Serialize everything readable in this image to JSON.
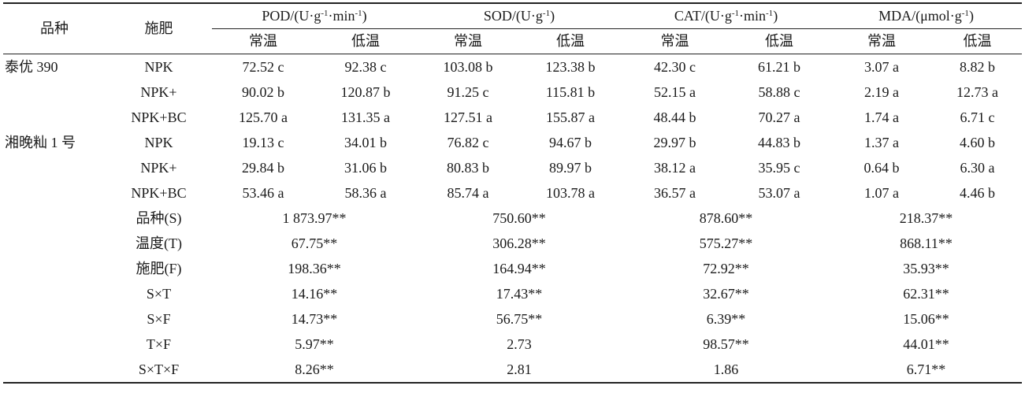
{
  "header": {
    "variety": "品种",
    "fertilizer": "施肥",
    "groups": [
      {
        "base": "POD/(U·g",
        "sup1": "-1",
        "mid": "·min",
        "sup2": "-1",
        "end": ")"
      },
      {
        "base": "SOD/(U·g",
        "sup1": "-1",
        "mid": "",
        "sup2": "",
        "end": ")"
      },
      {
        "base": "CAT/(U·g",
        "sup1": "-1",
        "mid": "·min",
        "sup2": "-1",
        "end": ")"
      },
      {
        "base": "MDA/(μmol·g",
        "sup1": "-1",
        "mid": "",
        "sup2": "",
        "end": ")"
      }
    ],
    "sub_normal": "常温",
    "sub_low": "低温"
  },
  "rows": [
    {
      "variety": "泰优 390",
      "fert": "NPK",
      "v": [
        "72.52 c",
        "92.38 c",
        "103.08 b",
        "123.38 b",
        "42.30 c",
        "61.21 b",
        "3.07 a",
        "8.82 b"
      ]
    },
    {
      "variety": "",
      "fert": "NPK+",
      "v": [
        "90.02 b",
        "120.87 b",
        "91.25 c",
        "115.81 b",
        "52.15 a",
        "58.88 c",
        "2.19 a",
        "12.73 a"
      ]
    },
    {
      "variety": "",
      "fert": "NPK+BC",
      "v": [
        "125.70 a",
        "131.35 a",
        "127.51 a",
        "155.87 a",
        "48.44 b",
        "70.27 a",
        "1.74 a",
        "6.71 c"
      ]
    },
    {
      "variety": "湘晚籼 1 号",
      "fert": "NPK",
      "v": [
        "19.13 c",
        "34.01 b",
        "76.82 c",
        "94.67 b",
        "29.97 b",
        "44.83 b",
        "1.37 a",
        "4.60 b"
      ]
    },
    {
      "variety": "",
      "fert": "NPK+",
      "v": [
        "29.84 b",
        "31.06 b",
        "80.83 b",
        "89.97 b",
        "38.12 a",
        "35.95 c",
        "0.64 b",
        "6.30 a"
      ]
    },
    {
      "variety": "",
      "fert": "NPK+BC",
      "v": [
        "53.46 a",
        "58.36 a",
        "85.74 a",
        "103.78 a",
        "36.57 a",
        "53.07 a",
        "1.07 a",
        "4.46 b"
      ]
    }
  ],
  "anova": [
    {
      "label": "品种(S)",
      "v": [
        "1 873.97**",
        "750.60**",
        "878.60**",
        "218.37**"
      ]
    },
    {
      "label": "温度(T)",
      "v": [
        "67.75**",
        "306.28**",
        "575.27**",
        "868.11**"
      ]
    },
    {
      "label": "施肥(F)",
      "v": [
        "198.36**",
        "164.94**",
        "72.92**",
        "35.93**"
      ]
    },
    {
      "label": "S×T",
      "v": [
        "14.16**",
        "17.43**",
        "32.67**",
        "62.31**"
      ]
    },
    {
      "label": "S×F",
      "v": [
        "14.73**",
        "56.75**",
        "6.39**",
        "15.06**"
      ]
    },
    {
      "label": "T×F",
      "v": [
        "5.97**",
        "2.73",
        "98.57**",
        "44.01**"
      ]
    },
    {
      "label": "S×T×F",
      "v": [
        "8.26**",
        "2.81",
        "1.86",
        "6.71**"
      ]
    }
  ]
}
